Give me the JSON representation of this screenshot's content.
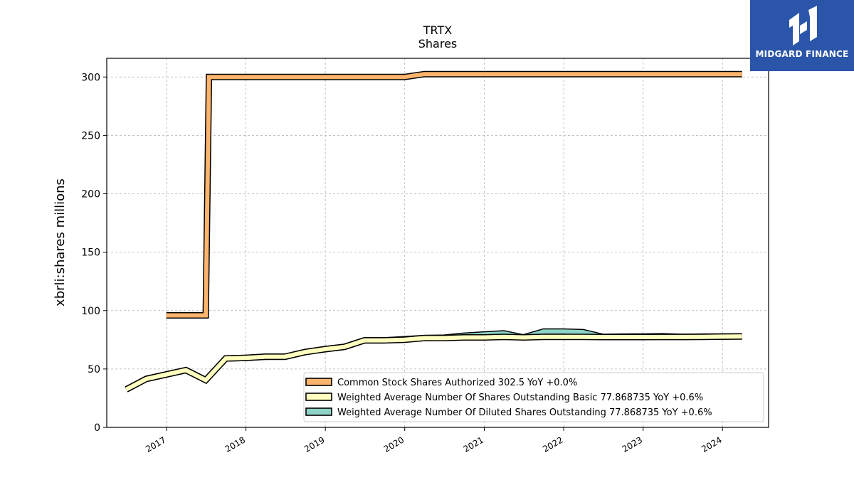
{
  "logo": {
    "text": "MIDGARD FINANCE",
    "bg": "#2b55a8"
  },
  "chart_data": {
    "type": "line",
    "title": "TRTX",
    "subtitle": "Shares",
    "xlabel": "",
    "ylabel": "xbrli:shares millions",
    "ylim": [
      0,
      316
    ],
    "yticks": [
      0,
      50,
      100,
      150,
      200,
      250,
      300
    ],
    "xticks": [
      "2017",
      "2018",
      "2019",
      "2020",
      "2021",
      "2022",
      "2023",
      "2024"
    ],
    "xlim": [
      "2016-04-01",
      "2024-07-31"
    ],
    "grid": true,
    "legend_position": "bottom-right",
    "series": [
      {
        "name": "Common Stock Shares Authorized  302.5 YoY +0.0%",
        "color": "#fdb46c",
        "x": [
          "2016-12-31",
          "2017-06-30",
          "2017-07-15",
          "2019-12-31",
          "2020-03-31",
          "2024-03-31"
        ],
        "y": [
          95.9,
          95.9,
          300,
          300,
          302.5,
          302.5
        ]
      },
      {
        "name": "Weighted Average Number Of Shares Outstanding Basic  77.868735 YoY +0.6%",
        "color": "#ffffbf",
        "x": [
          "2016-06-30",
          "2016-09-30",
          "2017-03-31",
          "2017-06-30",
          "2017-09-30",
          "2017-12-31",
          "2018-03-31",
          "2018-06-30",
          "2018-09-30",
          "2018-12-31",
          "2019-03-31",
          "2019-06-30",
          "2019-09-30",
          "2019-12-31",
          "2020-03-31",
          "2020-06-30",
          "2020-09-30",
          "2020-12-31",
          "2021-03-31",
          "2021-06-30",
          "2021-09-30",
          "2021-12-31",
          "2022-03-31",
          "2022-06-30",
          "2022-09-30",
          "2022-12-31",
          "2023-03-31",
          "2023-06-30",
          "2023-09-30",
          "2023-12-31",
          "2024-03-31"
        ],
        "y": [
          32.5,
          41.5,
          49,
          40.5,
          59,
          59.5,
          60.5,
          60.5,
          64.5,
          67,
          69,
          74.5,
          74.5,
          75,
          76.5,
          76.5,
          77,
          77,
          77.5,
          77,
          77.5,
          77.5,
          77.5,
          77.3,
          77.3,
          77.3,
          77.4,
          77.4,
          77.5,
          77.7,
          77.9
        ]
      },
      {
        "name": "Weighted Average Number Of Diluted Shares Outstanding  77.868735 YoY +0.6%",
        "color": "#8dd3c7",
        "x": [
          "2016-06-30",
          "2016-09-30",
          "2017-03-31",
          "2017-06-30",
          "2017-09-30",
          "2017-12-31",
          "2018-03-31",
          "2018-06-30",
          "2018-09-30",
          "2018-12-31",
          "2019-03-31",
          "2019-06-30",
          "2019-09-30",
          "2019-12-31",
          "2020-03-31",
          "2020-06-30",
          "2020-09-30",
          "2020-12-31",
          "2021-03-31",
          "2021-06-30",
          "2021-09-30",
          "2021-12-31",
          "2022-03-31",
          "2022-06-30",
          "2022-09-30",
          "2022-12-31",
          "2023-03-31",
          "2023-06-30",
          "2023-09-30",
          "2023-12-31",
          "2024-03-31"
        ],
        "y": [
          32.5,
          41.5,
          49,
          40.5,
          59,
          59.5,
          60.5,
          60.5,
          64.5,
          67,
          69,
          74.5,
          74.5,
          75.5,
          76.5,
          76.8,
          78.5,
          79.5,
          80.5,
          77,
          82,
          82,
          81.5,
          77.5,
          77.7,
          77.8,
          78,
          77.5,
          77.7,
          77.8,
          77.9
        ]
      }
    ]
  }
}
